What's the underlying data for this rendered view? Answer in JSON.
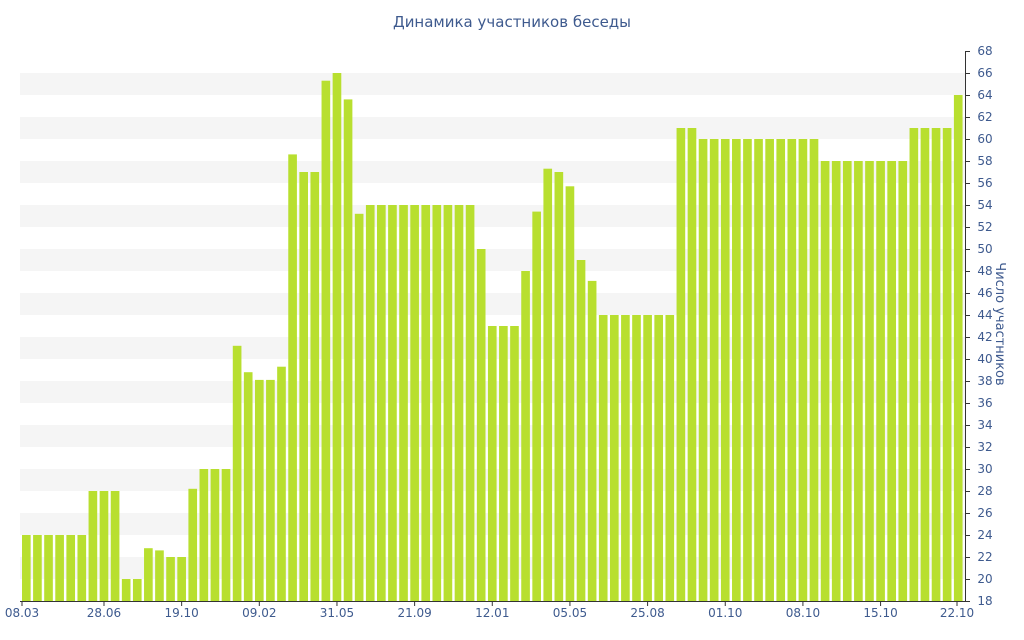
{
  "chart_data": {
    "type": "bar",
    "title": "Динамика участников беседы",
    "xlabel": "",
    "ylabel": "Число участников",
    "ylim": [
      18,
      68
    ],
    "y_axis_side": "right",
    "y_ticks": [
      18,
      20,
      22,
      24,
      26,
      28,
      30,
      32,
      34,
      36,
      38,
      40,
      42,
      44,
      46,
      48,
      50,
      52,
      54,
      56,
      58,
      60,
      62,
      64,
      66,
      68
    ],
    "x_tick_labels": [
      {
        "index": 0,
        "label": "08.03"
      },
      {
        "index": 7,
        "label": "28.06"
      },
      {
        "index": 14,
        "label": "19.10"
      },
      {
        "index": 21,
        "label": "09.02"
      },
      {
        "index": 28,
        "label": "31.05"
      },
      {
        "index": 35,
        "label": "21.09"
      },
      {
        "index": 42,
        "label": "12.01"
      },
      {
        "index": 49,
        "label": "05.05"
      },
      {
        "index": 56,
        "label": "25.08"
      },
      {
        "index": 63,
        "label": "01.10"
      },
      {
        "index": 70,
        "label": "08.10"
      },
      {
        "index": 77,
        "label": "15.10"
      },
      {
        "index": 84,
        "label": "22.10"
      }
    ],
    "grid": "alternating horizontal bands",
    "colors": {
      "bar": "#b8df2f",
      "band": "#f5f5f5",
      "text": "#3e5a8e",
      "axis": "#333333"
    },
    "values": [
      24,
      24,
      24,
      24,
      24,
      24,
      28,
      28,
      28,
      20,
      20,
      22.8,
      22.6,
      22,
      22,
      28.2,
      30,
      30,
      30,
      41.2,
      38.8,
      38.1,
      38.1,
      39.3,
      58.6,
      57,
      57,
      65.3,
      66,
      63.6,
      53.2,
      54,
      54,
      54,
      54,
      54,
      54,
      54,
      54,
      54,
      54,
      50,
      43,
      43,
      43,
      48,
      53.4,
      57.3,
      57,
      55.7,
      49,
      47.1,
      44,
      44,
      44,
      44,
      44,
      44,
      44,
      61,
      61,
      60,
      60,
      60,
      60,
      60,
      60,
      60,
      60,
      60,
      60,
      60,
      58,
      58,
      58,
      58,
      58,
      58,
      58,
      58,
      61,
      61,
      61,
      61,
      64
    ]
  }
}
